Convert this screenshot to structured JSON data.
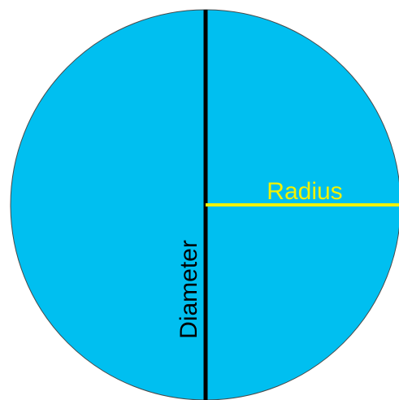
{
  "labels": {
    "radius": "Radius",
    "diameter": "Diameter"
  },
  "colors": {
    "circle_fill": "#00BFF0",
    "circle_outline": "#4a4a4a",
    "radius_line": "#F2F200",
    "radius_text": "#F2F200",
    "diameter_line": "#000000",
    "diameter_text": "#000000"
  }
}
